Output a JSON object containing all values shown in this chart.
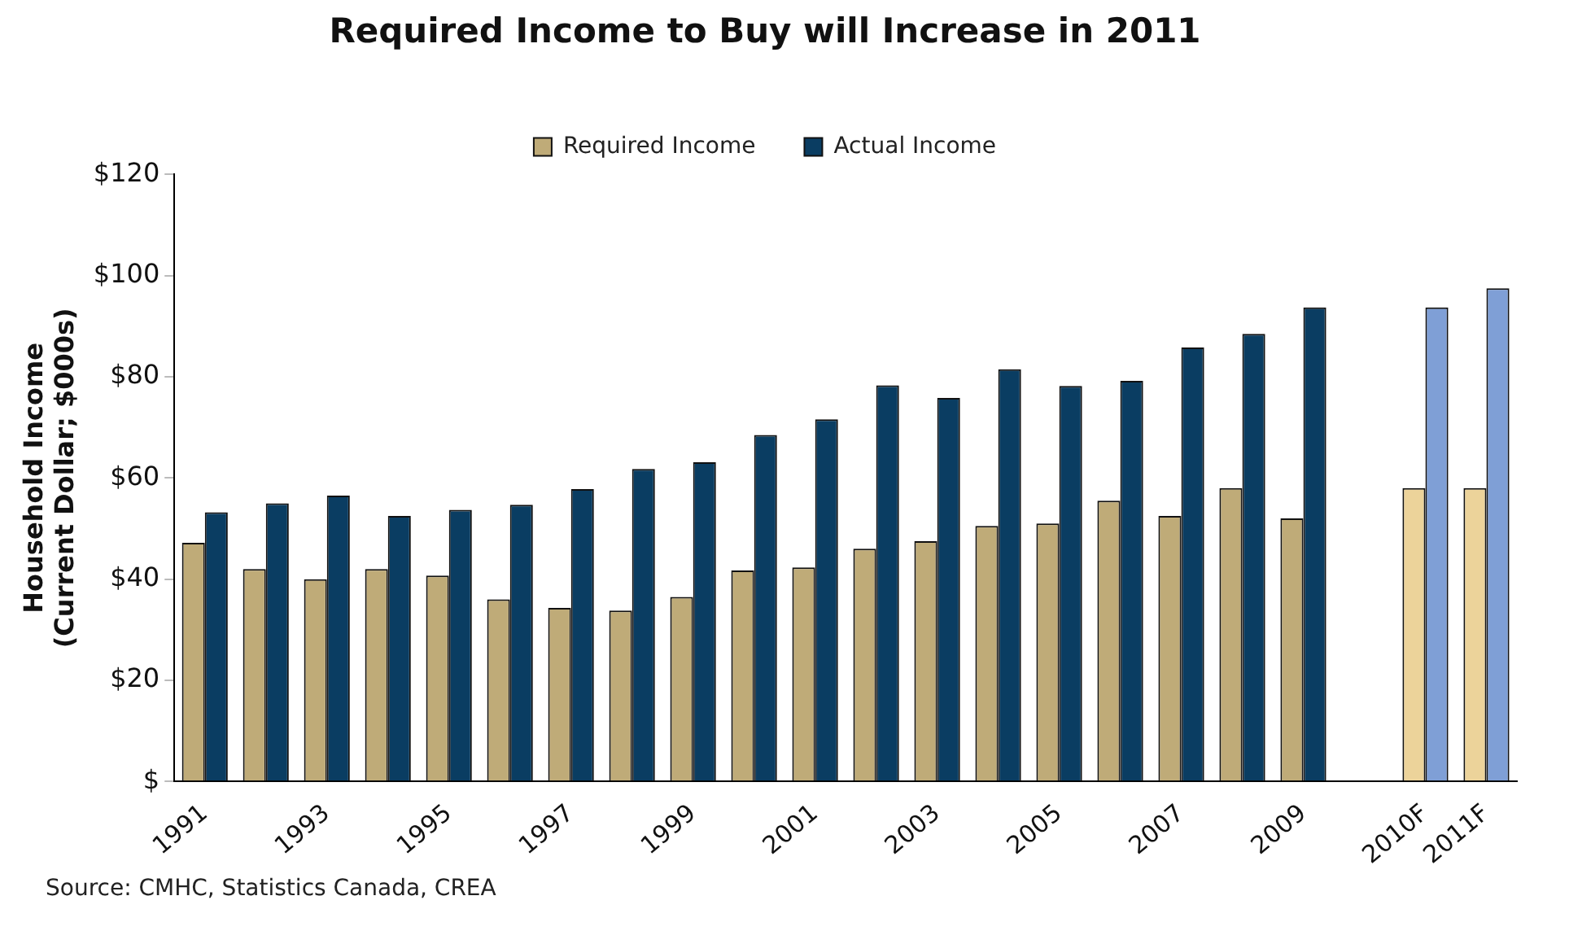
{
  "chart_data": {
    "type": "bar",
    "title": "Required Income to Buy will Increase in 2011",
    "ylabel": "Household Income\n(Current Dollar; $000s)",
    "categories": [
      "1991",
      null,
      "1993",
      null,
      "1995",
      null,
      "1997",
      null,
      "1999",
      null,
      "2001",
      null,
      "2003",
      null,
      "2005",
      null,
      "2007",
      null,
      "2009",
      null,
      "2010F",
      "2011F"
    ],
    "series": [
      {
        "name": "Required Income",
        "color": "#bfab78",
        "colors": [
          "#bfab78",
          "#bfab78",
          "#bfab78",
          "#bfab78",
          "#bfab78",
          "#bfab78",
          "#bfab78",
          "#bfab78",
          "#bfab78",
          "#bfab78",
          "#bfab78",
          "#bfab78",
          "#bfab78",
          "#bfab78",
          "#bfab78",
          "#bfab78",
          "#bfab78",
          "#bfab78",
          "#bfab78",
          "#bfab78",
          "#ecd39a",
          "#ecd39a"
        ],
        "values": [
          47.2,
          42,
          40,
          42,
          40.7,
          36,
          34.3,
          33.8,
          36.5,
          41.7,
          42.3,
          46,
          47.5,
          50.5,
          51,
          55.5,
          52.5,
          58,
          52,
          null,
          58,
          58
        ]
      },
      {
        "name": "Actual Income",
        "color": "#0a3d62",
        "colors": [
          "#0a3d62",
          "#0a3d62",
          "#0a3d62",
          "#0a3d62",
          "#0a3d62",
          "#0a3d62",
          "#0a3d62",
          "#0a3d62",
          "#0a3d62",
          "#0a3d62",
          "#0a3d62",
          "#0a3d62",
          "#0a3d62",
          "#0a3d62",
          "#0a3d62",
          "#0a3d62",
          "#0a3d62",
          "#0a3d62",
          "#0a3d62",
          "#0a3d62",
          "#7f9fd6",
          "#7f9fd6"
        ],
        "values": [
          53.2,
          55,
          56.5,
          52.5,
          53.7,
          54.7,
          57.8,
          61.8,
          63.1,
          68.5,
          71.6,
          78.3,
          75.8,
          81.5,
          78.2,
          79.2,
          85.8,
          88.5,
          93.7,
          null,
          93.7,
          97.5
        ]
      }
    ],
    "ylim": [
      0,
      120
    ],
    "yticks": [
      {
        "value": 0,
        "label": "$"
      },
      {
        "value": 20,
        "label": "$20"
      },
      {
        "value": 40,
        "label": "$40"
      },
      {
        "value": 60,
        "label": "$60"
      },
      {
        "value": 80,
        "label": "$80"
      },
      {
        "value": 100,
        "label": "$100"
      },
      {
        "value": 120,
        "label": "$120"
      }
    ],
    "grid": false,
    "legend": "top",
    "annotations": [
      "Source: CMHC, Statistics Canada, CREA"
    ]
  }
}
